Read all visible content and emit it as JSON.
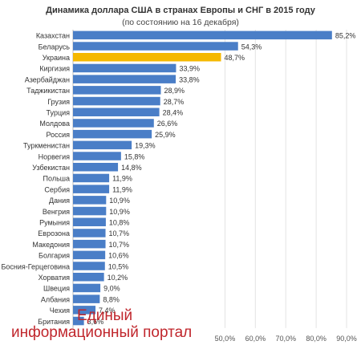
{
  "header": {
    "title": "Динамика доллара США в странах Европы и СНГ в 2015 году",
    "subtitle": "(по состоянию на 16 декабря)"
  },
  "watermark": {
    "line1": "Единый",
    "line2": "информационный портал"
  },
  "colors": {
    "bar": "#4a7ec7",
    "highlight": "#f5b800",
    "grid": "#e3e3e3"
  },
  "chart_data": {
    "type": "bar",
    "orientation": "horizontal",
    "title": "Динамика доллара США в странах Европы и СНГ в 2015 году",
    "subtitle": "(по состоянию на 16 декабря)",
    "categories": [
      "Казахстан",
      "Беларусь",
      "Украина",
      "Киргизия",
      "Азербайджан",
      "Таджикистан",
      "Грузия",
      "Турция",
      "Молдова",
      "Россия",
      "Туркменистан",
      "Норвегия",
      "Узбекистан",
      "Польша",
      "Сербия",
      "Дания",
      "Венгрия",
      "Румыния",
      "Еврозона",
      "Македония",
      "Болгария",
      "Босния-Герцеговина",
      "Хорватия",
      "Швеция",
      "Албания",
      "Чехия",
      "Британия"
    ],
    "values": [
      85.2,
      54.3,
      48.7,
      33.9,
      33.8,
      28.9,
      28.7,
      28.4,
      26.6,
      25.9,
      19.3,
      15.8,
      14.8,
      11.9,
      11.9,
      10.9,
      10.9,
      10.8,
      10.7,
      10.7,
      10.6,
      10.5,
      10.2,
      9.0,
      8.8,
      7.4,
      3.6
    ],
    "data_labels": [
      "85,2%",
      "54,3%",
      "48,7%",
      "33,9%",
      "33,8%",
      "28,9%",
      "28,7%",
      "28,4%",
      "26,6%",
      "25,9%",
      "19,3%",
      "15,8%",
      "14,8%",
      "11,9%",
      "11,9%",
      "10,9%",
      "10,9%",
      "10,8%",
      "10,7%",
      "10,7%",
      "10,6%",
      "10,5%",
      "10,2%",
      "9,0%",
      "8,8%",
      "7,4%",
      "3,6%"
    ],
    "highlight_index": 2,
    "xlim": [
      0,
      90
    ],
    "x_ticks": [
      "50,0%",
      "60,0%",
      "70,0%",
      "80,0%",
      "90,0%"
    ],
    "x_tick_values": [
      50,
      60,
      70,
      80,
      90
    ],
    "grid": true
  }
}
